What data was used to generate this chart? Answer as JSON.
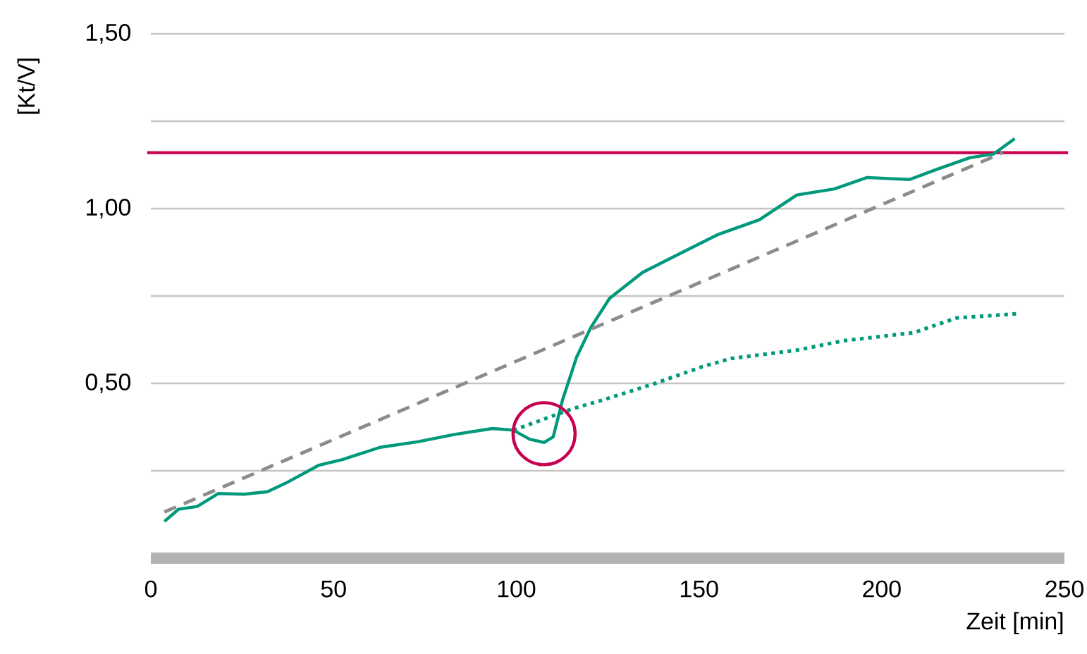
{
  "chart_data": {
    "type": "line",
    "xlabel": "Zeit [min]",
    "ylabel": "[Kt/V]",
    "xlim": [
      0,
      250
    ],
    "ylim": [
      0,
      1.5
    ],
    "xticks": [
      0,
      50,
      100,
      150,
      200,
      250
    ],
    "yticks": [
      {
        "value": 0.25,
        "label": null
      },
      {
        "value": 0.5,
        "label": "0,50"
      },
      {
        "value": 0.75,
        "label": null
      },
      {
        "value": 1.0,
        "label": "1,00"
      },
      {
        "value": 1.25,
        "label": null
      },
      {
        "value": 1.5,
        "label": "1,50"
      }
    ],
    "grid": "y",
    "marker": "none",
    "series": [
      {
        "color": "#00997a",
        "line_style": "solid",
        "x": [
          3.7,
          7.6,
          12.7,
          18.5,
          25.5,
          31.9,
          37,
          46,
          52.4,
          62.7,
          73,
          83.2,
          93.5,
          99.2,
          103.7,
          107.6,
          110.1,
          112.7,
          116.5,
          120.4,
          125.5,
          134.5,
          144.7,
          155,
          166.5,
          176.8,
          187,
          196,
          207.6,
          215.3,
          224.2,
          230.6,
          236.4
        ],
        "values": [
          0.105,
          0.14,
          0.148,
          0.185,
          0.183,
          0.19,
          0.215,
          0.266,
          0.282,
          0.317,
          0.333,
          0.354,
          0.371,
          0.366,
          0.34,
          0.331,
          0.347,
          0.454,
          0.575,
          0.66,
          0.743,
          0.817,
          0.871,
          0.925,
          0.968,
          1.039,
          1.056,
          1.089,
          1.083,
          1.113,
          1.146,
          1.156,
          1.2
        ]
      },
      {
        "color": "#00997a",
        "line_style": "dotted",
        "x": [
          99.2,
          115.3,
          124.2,
          138.3,
          151,
          158.7,
          176.8,
          189.6,
          208.8,
          220.4,
          237
        ],
        "values": [
          0.366,
          0.427,
          0.454,
          0.501,
          0.548,
          0.571,
          0.595,
          0.622,
          0.645,
          0.687,
          0.699
        ]
      },
      {
        "color": "#8c8c8c",
        "line_style": "dashed",
        "x": [
          3.7,
          233.2
        ],
        "values": [
          0.132,
          1.16
        ]
      }
    ],
    "ref_lines": [
      {
        "axis": "y",
        "value": 1.16,
        "color": "#c8004f"
      }
    ]
  }
}
